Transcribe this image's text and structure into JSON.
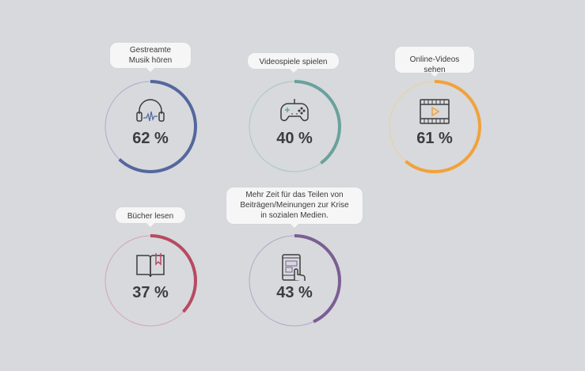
{
  "items": [
    {
      "label": "Gestreamte Musik hören",
      "value": 62,
      "display": "62 %",
      "color": "#54689e",
      "track": "#a7aecf",
      "icon": "headphones-icon"
    },
    {
      "label": "Videospiele spielen",
      "value": 40,
      "display": "40 %",
      "color": "#6aa19d",
      "track": "#a8c6c3",
      "icon": "gamepad-icon"
    },
    {
      "label": "Online-Videos sehen",
      "value": 61,
      "display": "61 %",
      "color": "#f1a23b",
      "track": "#f4cc97",
      "icon": "film-play-icon"
    },
    {
      "label": "Bücher lesen",
      "value": 37,
      "display": "37 %",
      "color": "#b74a63",
      "track": "#d6a4b2",
      "icon": "book-icon"
    },
    {
      "label": "Mehr Zeit für das Teilen von Beiträgen/Meinungen zur Krise in sozialen Medien.",
      "value": 43,
      "display": "43 %",
      "color": "#7b5e93",
      "track": "#b6a6c7",
      "icon": "phone-touch-icon"
    }
  ]
}
